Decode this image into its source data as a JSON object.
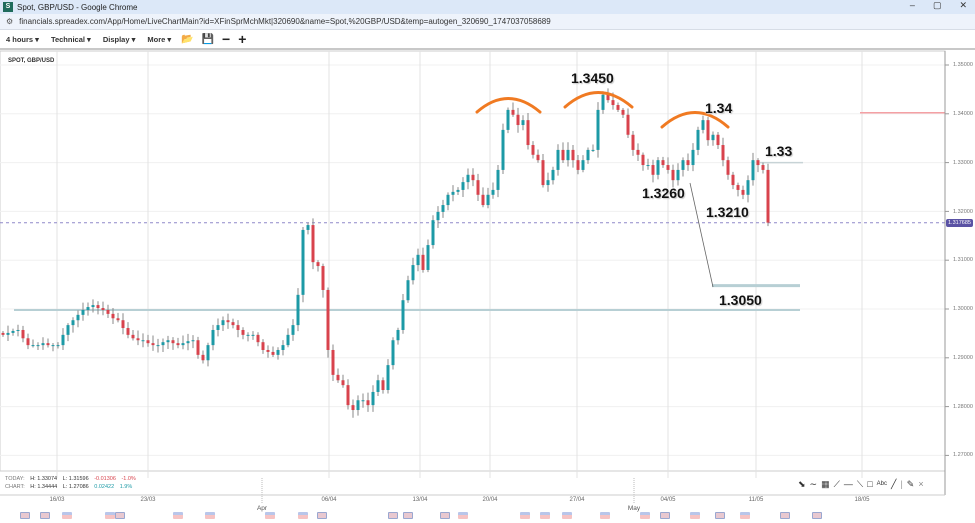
{
  "window": {
    "title": "Spot, GBP/USD - Google Chrome",
    "favicon": "S",
    "url": "financials.spreadex.com/App/Home/LiveChartMain?id=XFinSprMchMkt|320690&name=Spot,%20GBP/USD&temp=autogen_320690_1747037058689",
    "controls": [
      "–",
      "▢",
      "✕"
    ]
  },
  "toolbar": {
    "interval": "4 hours ▾",
    "technical": "Technical ▾",
    "display": "Display ▾",
    "more": "More ▾",
    "icons": [
      "folder-open-icon",
      "save-icon",
      "zoom-out-icon",
      "zoom-in-icon"
    ]
  },
  "instrument": "SPOT, GBP/USD",
  "stats": {
    "today": {
      "label": "TODAY:",
      "high": "H: 1.33074",
      "low": "L: 1.31596",
      "change": "-0.01306",
      "pct": "-1.0%"
    },
    "chart": {
      "label": "CHART:",
      "high": "H: 1.34444",
      "low": "L: 1.27086",
      "change": "0.02422",
      "pct": "1.9%"
    }
  },
  "current_price": "1.317685",
  "colors": {
    "up": "#1d9aa6",
    "down": "#d8434d",
    "annotation_arc": "#f07a22",
    "support_line": "#b7cfd4",
    "resistance_line": "#f4a0a4",
    "price_line": "#8f88c9"
  },
  "annotations": {
    "head": "1.3450",
    "right_shoulder": "1.34",
    "neckline_right": "1.33",
    "neckline_left": "1.3260",
    "low": "1.3210",
    "target": "1.3050"
  },
  "chart_data": {
    "type": "candlestick",
    "interval": "4 hours",
    "y_ticks": [
      "1.35000",
      "1.34000",
      "1.33000",
      "1.32000",
      "1.31000",
      "1.30000",
      "1.29000",
      "1.28000",
      "1.27000"
    ],
    "ylim": [
      1.265,
      1.353
    ],
    "x_ticks": [
      "16/03",
      "23/03",
      "06/04",
      "13/04",
      "20/04",
      "27/04",
      "04/05",
      "11/05",
      "18/05"
    ],
    "month_labels": [
      "Apr",
      "May"
    ],
    "grid": true,
    "closes": [
      1.2947,
      1.2951,
      1.2955,
      1.2957,
      1.294,
      1.2926,
      1.2926,
      1.2926,
      1.293,
      1.2926,
      1.2926,
      1.2926,
      1.2947,
      1.2967,
      1.2977,
      1.2988,
      1.2998,
      1.3004,
      1.3008,
      1.3002,
      1.2998,
      1.299,
      1.2981,
      1.2977,
      1.2961,
      1.2947,
      1.294,
      1.2936,
      1.2936,
      1.293,
      1.2926,
      1.2926,
      1.2932,
      1.2936,
      1.293,
      1.2926,
      1.293,
      1.2934,
      1.2936,
      1.2906,
      1.2895,
      1.2926,
      1.2957,
      1.2967,
      1.2977,
      1.2973,
      1.2967,
      1.2957,
      1.2947,
      1.2947,
      1.2947,
      1.2932,
      1.2916,
      1.2912,
      1.2906,
      1.2916,
      1.2926,
      1.2947,
      1.2967,
      1.3029,
      1.3162,
      1.3172,
      1.3096,
      1.3088,
      1.3039,
      1.2916,
      1.2865,
      1.2854,
      1.2844,
      1.2803,
      1.2793,
      1.2813,
      1.2813,
      1.2803,
      1.283,
      1.2854,
      1.2834,
      1.2885,
      1.2936,
      1.2957,
      1.3018,
      1.3059,
      1.309,
      1.3111,
      1.308,
      1.3131,
      1.3182,
      1.3199,
      1.3213,
      1.3234,
      1.324,
      1.3244,
      1.326,
      1.3275,
      1.3264,
      1.3234,
      1.3213,
      1.3234,
      1.3244,
      1.3285,
      1.3367,
      1.3408,
      1.3398,
      1.3377,
      1.3387,
      1.3336,
      1.3316,
      1.3305,
      1.3254,
      1.3264,
      1.3285,
      1.3326,
      1.3305,
      1.3326,
      1.3305,
      1.3285,
      1.3305,
      1.3326,
      1.3326,
      1.3408,
      1.3439,
      1.3428,
      1.3418,
      1.3408,
      1.3398,
      1.3357,
      1.3326,
      1.3316,
      1.3295,
      1.3295,
      1.3275,
      1.3305,
      1.3295,
      1.3285,
      1.3264,
      1.3285,
      1.3305,
      1.3295,
      1.3326,
      1.3367,
      1.3387,
      1.3346,
      1.3357,
      1.3336,
      1.3305,
      1.3275,
      1.3254,
      1.3244,
      1.3234,
      1.3264,
      1.3305,
      1.3295,
      1.3285,
      1.3177
    ],
    "horizontal_lines": [
      {
        "price": 1.3,
        "role": "support"
      },
      {
        "price": 1.305,
        "role": "target"
      },
      {
        "price": 1.33,
        "role": "neckline"
      },
      {
        "price": 1.34,
        "role": "resistance"
      },
      {
        "price": 1.317685,
        "role": "current"
      }
    ]
  },
  "draw_tools": [
    "arrow-icon",
    "curve-icon",
    "grid-icon",
    "fan-icon",
    "hline-icon",
    "trendline-icon",
    "rectangle-icon",
    "text-icon",
    "line-icon",
    "divider",
    "pencil-icon",
    "close-icon"
  ]
}
